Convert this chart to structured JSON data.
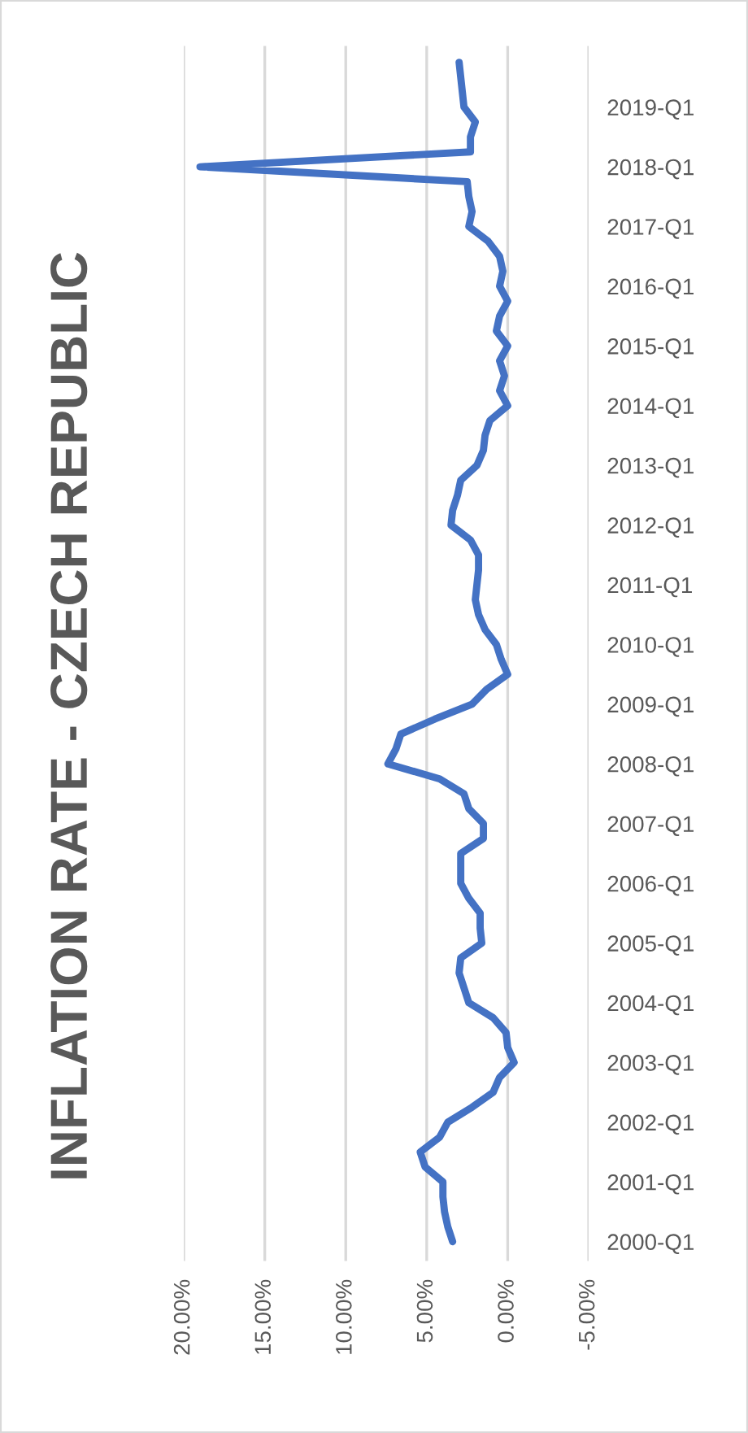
{
  "chart_data": {
    "type": "line",
    "title": "INFLATION RATE - CZECH REPUBLIC",
    "orientation": "horizontal",
    "categories": [
      null,
      null,
      null,
      "2019-Q1",
      null,
      null,
      null,
      "2018-Q1",
      null,
      null,
      null,
      "2017-Q1",
      null,
      null,
      null,
      "2016-Q1",
      null,
      null,
      null,
      "2015-Q1",
      null,
      null,
      null,
      "2014-Q1",
      null,
      null,
      null,
      "2013-Q1",
      null,
      null,
      null,
      "2012-Q1",
      null,
      null,
      null,
      "2011-Q1",
      null,
      null,
      null,
      "2010-Q1",
      null,
      null,
      null,
      "2009-Q1",
      null,
      null,
      null,
      "2008-Q1",
      null,
      null,
      null,
      "2007-Q1",
      null,
      null,
      null,
      "2006-Q1",
      null,
      null,
      null,
      "2005-Q1",
      null,
      null,
      null,
      "2004-Q1",
      null,
      null,
      null,
      "2003-Q1",
      null,
      null,
      null,
      "2002-Q1",
      null,
      null,
      null,
      "2001-Q1",
      null,
      null,
      null,
      "2000-Q1"
    ],
    "series": [
      {
        "color": "#4472c4",
        "values": [
          3.0,
          2.9,
          2.8,
          2.7,
          2.0,
          2.3,
          2.3,
          19.0,
          2.5,
          2.4,
          2.2,
          2.4,
          1.2,
          0.5,
          0.3,
          0.5,
          0.0,
          0.5,
          0.7,
          0.0,
          0.5,
          0.2,
          0.5,
          0.0,
          1.1,
          1.4,
          1.5,
          1.9,
          2.9,
          3.1,
          3.4,
          3.5,
          2.3,
          1.8,
          1.8,
          1.9,
          2.0,
          1.8,
          1.4,
          0.7,
          0.4,
          0.0,
          1.3,
          2.2,
          4.5,
          6.6,
          6.9,
          7.4,
          4.2,
          2.7,
          2.4,
          1.5,
          1.5,
          2.9,
          2.9,
          2.9,
          2.4,
          1.7,
          1.7,
          1.6,
          2.9,
          3.0,
          2.7,
          2.4,
          0.9,
          0.1,
          0.0,
          -0.4,
          0.5,
          0.9,
          2.2,
          3.7,
          4.2,
          5.4,
          5.1,
          4.0,
          4.0,
          3.9,
          3.7,
          3.4
        ]
      }
    ],
    "xlim": [
      20,
      -5
    ],
    "xticks": [
      {
        "value": 20,
        "label": "20.00%"
      },
      {
        "value": 15,
        "label": "15.00%"
      },
      {
        "value": 10,
        "label": "10.00%"
      },
      {
        "value": 5,
        "label": "5.00%"
      },
      {
        "value": 0,
        "label": "0.00%"
      },
      {
        "value": -5,
        "label": "-5.00%"
      }
    ],
    "grid": "x",
    "legend": false,
    "marker": "none",
    "line_style": "solid"
  }
}
